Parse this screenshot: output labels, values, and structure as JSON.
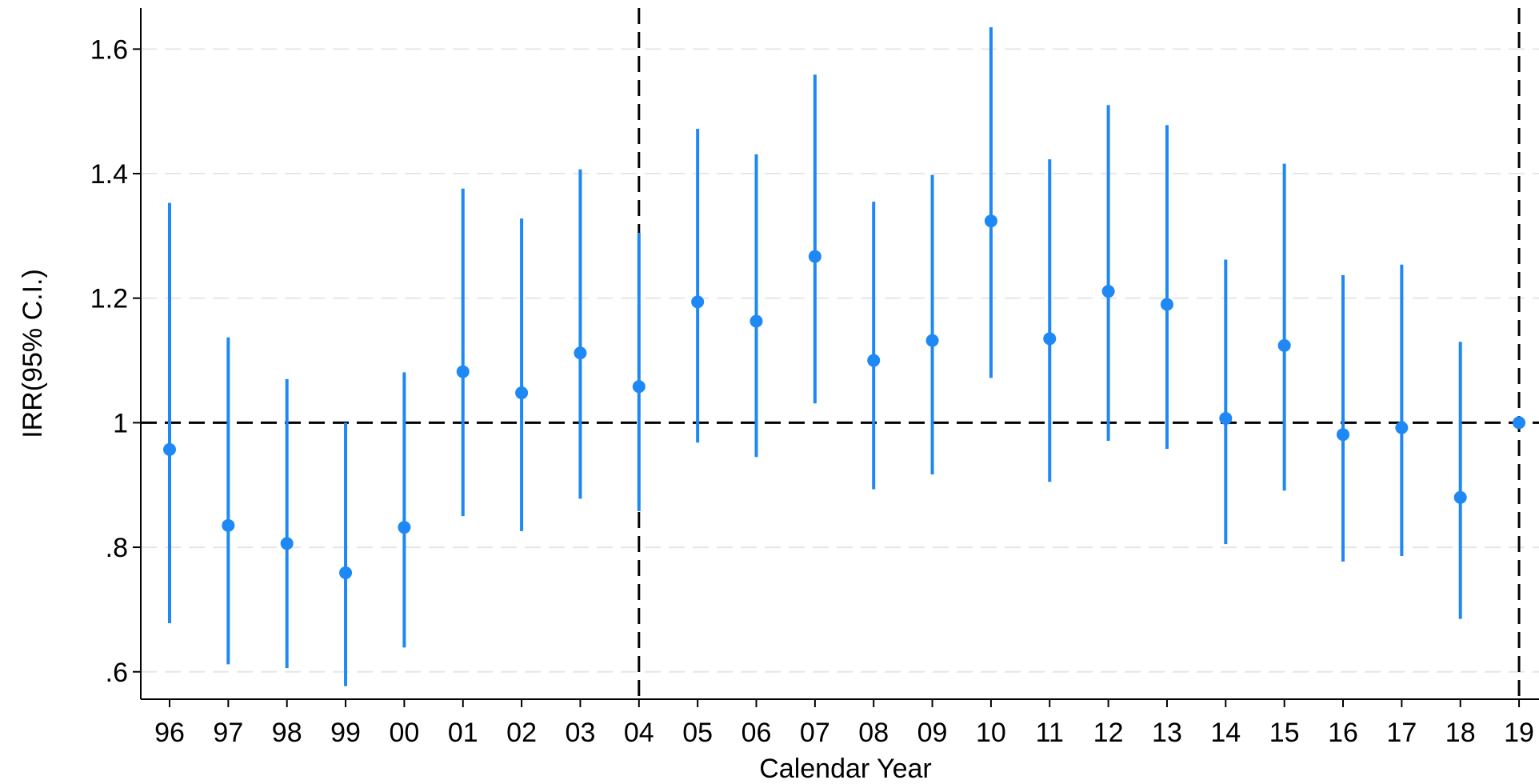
{
  "chart_data": {
    "type": "scatter",
    "xlabel": "Calendar Year",
    "ylabel": "IRR(95% C.I.)",
    "categories": [
      "96",
      "97",
      "98",
      "99",
      "00",
      "01",
      "02",
      "03",
      "04",
      "05",
      "06",
      "07",
      "08",
      "09",
      "10",
      "11",
      "12",
      "13",
      "14",
      "15",
      "16",
      "17",
      "18",
      "19"
    ],
    "estimates": [
      0.957,
      0.835,
      0.806,
      0.759,
      0.832,
      1.082,
      1.048,
      1.112,
      1.058,
      1.194,
      1.163,
      1.267,
      1.1,
      1.132,
      1.324,
      1.135,
      1.211,
      1.19,
      1.007,
      1.124,
      0.981,
      0.992,
      0.88,
      1.0
    ],
    "ci_lower": [
      0.678,
      0.612,
      0.606,
      0.577,
      0.639,
      0.85,
      0.826,
      0.878,
      0.858,
      0.968,
      0.945,
      1.031,
      0.893,
      0.917,
      1.072,
      0.905,
      0.971,
      0.958,
      0.805,
      0.891,
      0.777,
      0.786,
      0.685,
      1.0
    ],
    "ci_upper": [
      1.353,
      1.137,
      1.07,
      1.0,
      1.081,
      1.376,
      1.328,
      1.407,
      1.305,
      1.472,
      1.431,
      1.559,
      1.355,
      1.398,
      1.635,
      1.423,
      1.51,
      1.478,
      1.262,
      1.416,
      1.237,
      1.254,
      1.13,
      1.0
    ],
    "ylim": [
      0.556,
      1.666
    ],
    "yticks": [
      {
        "value": 0.6,
        "label": ".6"
      },
      {
        "value": 0.8,
        "label": ".8"
      },
      {
        "value": 1.0,
        "label": "1"
      },
      {
        "value": 1.2,
        "label": "1.2"
      },
      {
        "value": 1.4,
        "label": "1.4"
      },
      {
        "value": 1.6,
        "label": "1.6"
      }
    ],
    "reference_hline": 1.0,
    "reference_vlines": [
      "04",
      "19"
    ],
    "grid": true,
    "legend": "none",
    "colors": {
      "series": "#1e88f5",
      "reference": "#000000",
      "grid": "#e6e6e6",
      "axis": "#000000"
    }
  }
}
